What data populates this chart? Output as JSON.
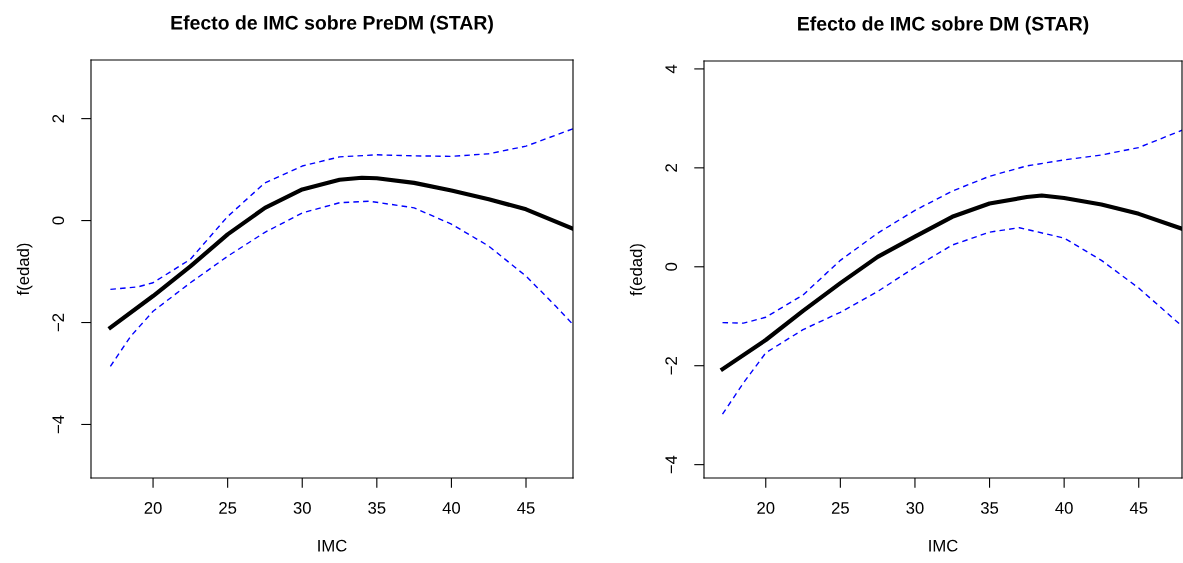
{
  "chart_data": [
    {
      "type": "line",
      "title": "Efecto de IMC sobre PreDM (STAR)",
      "xlabel": "IMC",
      "ylabel": "f(edad)",
      "xlim": [
        15.84,
        48.15
      ],
      "ylim": [
        -5.05,
        3.15
      ],
      "xticks": [
        20,
        25,
        30,
        35,
        40,
        45
      ],
      "yticks": [
        -4,
        -2,
        0,
        2
      ],
      "series": [
        {
          "color": "#000000",
          "line_style": "solid",
          "x": [
            17.14,
            20,
            22.5,
            25,
            27.5,
            30,
            32.5,
            34,
            35,
            37.5,
            40,
            42.5,
            45,
            48.15
          ],
          "values": [
            -2.1,
            -1.48,
            -0.9,
            -0.27,
            0.25,
            0.61,
            0.8,
            0.84,
            0.83,
            0.74,
            0.59,
            0.42,
            0.22,
            -0.16
          ]
        },
        {
          "color": "#0000ff",
          "line_style": "dashed",
          "x": [
            17.14,
            19,
            20,
            22.5,
            25,
            27.5,
            30,
            32.5,
            35,
            37.5,
            40,
            42.5,
            45,
            48.15
          ],
          "values": [
            -1.35,
            -1.3,
            -1.22,
            -0.76,
            0.08,
            0.74,
            1.07,
            1.25,
            1.29,
            1.27,
            1.26,
            1.31,
            1.46,
            1.8
          ]
        },
        {
          "color": "#0000ff",
          "line_style": "dashed",
          "x": [
            17.14,
            18.5,
            20,
            22.5,
            25,
            27.5,
            30,
            32.5,
            34.5,
            37.5,
            40,
            42.5,
            45,
            47,
            48.15
          ],
          "values": [
            -2.86,
            -2.27,
            -1.78,
            -1.22,
            -0.7,
            -0.23,
            0.15,
            0.35,
            0.38,
            0.25,
            -0.07,
            -0.5,
            -1.09,
            -1.68,
            -2.04
          ]
        }
      ]
    },
    {
      "type": "line",
      "title": "Efecto de IMC sobre DM (STAR)",
      "xlabel": "IMC",
      "ylabel": "f(edad)",
      "xlim": [
        15.86,
        47.9
      ],
      "ylim": [
        -4.27,
        4.16
      ],
      "xticks": [
        20,
        25,
        30,
        35,
        40,
        45
      ],
      "yticks": [
        -4,
        -2,
        0,
        2,
        4
      ],
      "series": [
        {
          "color": "#000000",
          "line_style": "solid",
          "x": [
            17.1,
            20,
            22.5,
            25,
            27.5,
            30,
            32.5,
            35,
            37.5,
            38.5,
            40,
            42.5,
            45,
            47.9
          ],
          "values": [
            -2.07,
            -1.48,
            -0.89,
            -0.33,
            0.2,
            0.61,
            1.01,
            1.28,
            1.41,
            1.44,
            1.39,
            1.26,
            1.07,
            0.77
          ]
        },
        {
          "color": "#0000ff",
          "line_style": "dashed",
          "x": [
            17.1,
            18.5,
            20,
            22.5,
            25,
            27.5,
            30,
            32.5,
            35,
            37.5,
            40,
            42.5,
            45,
            47.9
          ],
          "values": [
            -1.13,
            -1.14,
            -1.02,
            -0.57,
            0.13,
            0.68,
            1.14,
            1.53,
            1.83,
            2.04,
            2.16,
            2.26,
            2.41,
            2.76
          ]
        },
        {
          "color": "#0000ff",
          "line_style": "dashed",
          "x": [
            17.1,
            18.5,
            20,
            22.5,
            25,
            27.5,
            30,
            32.5,
            35,
            37,
            40,
            42.5,
            45,
            47.9
          ],
          "values": [
            -2.98,
            -2.35,
            -1.74,
            -1.27,
            -0.92,
            -0.5,
            -0.01,
            0.44,
            0.7,
            0.79,
            0.58,
            0.13,
            -0.43,
            -1.2
          ]
        }
      ]
    }
  ]
}
